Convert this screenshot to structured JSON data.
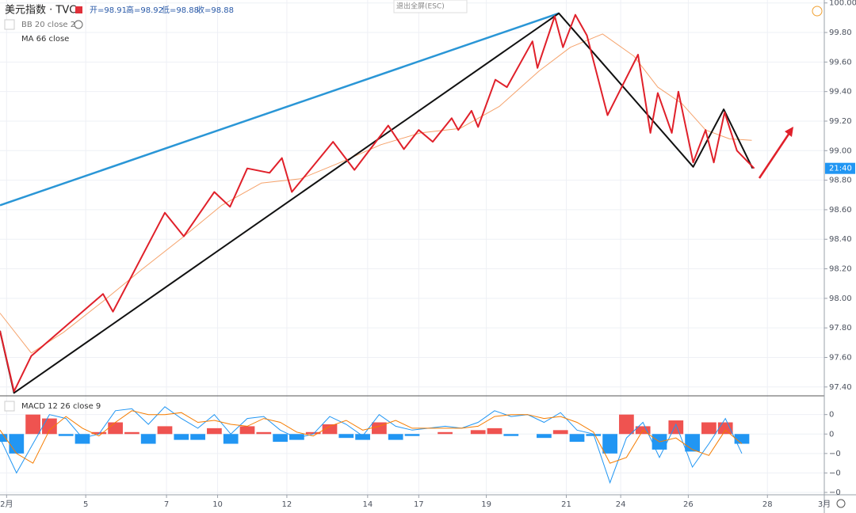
{
  "header": {
    "symbol": "美元指数 · TVC",
    "ohlc": [
      "开=98.91",
      "高=98.92",
      "低=98.88",
      "收=98.88"
    ],
    "indicators": [
      "BB 20 close 2",
      "MA 66 close"
    ],
    "exit_button": "退出全屏(ESC)"
  },
  "chart_data": [
    {
      "type": "line",
      "xlim": [
        0,
        100
      ],
      "xticks": [
        {
          "value": 0.8,
          "label": "2月"
        },
        {
          "value": 10.4,
          "label": "5"
        },
        {
          "value": 20.2,
          "label": "7"
        },
        {
          "value": 26.4,
          "label": "10"
        },
        {
          "value": 34.8,
          "label": "12"
        },
        {
          "value": 44.6,
          "label": "14"
        },
        {
          "value": 50.8,
          "label": "17"
        },
        {
          "value": 59.0,
          "label": "19"
        },
        {
          "value": 68.7,
          "label": "21"
        },
        {
          "value": 75.3,
          "label": "24"
        },
        {
          "value": 83.5,
          "label": "26"
        },
        {
          "value": 93.1,
          "label": "28"
        },
        {
          "value": 100,
          "label": "3月"
        }
      ],
      "ylim": [
        97.34,
        100.02
      ],
      "yticks": [
        {
          "value": 97.4,
          "label": "97.40"
        },
        {
          "value": 97.6,
          "label": "97.60"
        },
        {
          "value": 97.8,
          "label": "97.80"
        },
        {
          "value": 98.0,
          "label": "98.00"
        },
        {
          "value": 98.2,
          "label": "98.20"
        },
        {
          "value": 98.4,
          "label": "98.40"
        },
        {
          "value": 98.6,
          "label": "98.60"
        },
        {
          "value": 98.8,
          "label": "98.80"
        },
        {
          "value": 99.0,
          "label": "99.00"
        },
        {
          "value": 99.2,
          "label": "99.20"
        },
        {
          "value": 99.4,
          "label": "99.40"
        },
        {
          "value": 99.6,
          "label": "99.60"
        },
        {
          "value": 99.8,
          "label": "99.80"
        },
        {
          "value": 100.0,
          "label": "100.00"
        }
      ],
      "grid": true,
      "price_tag": {
        "value": 98.88,
        "label": "21:40",
        "color": "#2196f3"
      },
      "series": [
        {
          "name": "MA 66 close",
          "color": "#f5a26b",
          "width": 1,
          "x": [
            0,
            3.8,
            7.7,
            12.5,
            17.3,
            22.1,
            26.9,
            31.7,
            36.5,
            41.3,
            46.2,
            51.0,
            55.8,
            60.6,
            65.4,
            69.2,
            73.1,
            76.9,
            79.8,
            82.7,
            85.6,
            88.5,
            91.2
          ],
          "values": [
            97.9,
            97.63,
            97.77,
            97.98,
            98.2,
            98.41,
            98.63,
            98.78,
            98.81,
            98.92,
            99.04,
            99.12,
            99.15,
            99.3,
            99.54,
            99.7,
            99.79,
            99.64,
            99.43,
            99.32,
            99.14,
            99.08,
            99.07
          ]
        },
        {
          "name": "trend",
          "color": "#2a96d6",
          "width": 2.5,
          "x": [
            0,
            67.8
          ],
          "values": [
            98.63,
            99.93
          ]
        },
        {
          "name": "wave",
          "color": "#111111",
          "width": 2,
          "x": [
            0,
            1.7,
            67.8,
            84.1,
            87.8,
            91.3
          ],
          "values": [
            97.78,
            97.36,
            99.93,
            98.89,
            99.28,
            98.88
          ]
        },
        {
          "name": "swing",
          "color": "#e0202a",
          "width": 2,
          "x": [
            0,
            1.7,
            3.8,
            12.5,
            13.7,
            20.0,
            22.3,
            26.0,
            27.9,
            30.0,
            32.7,
            34.2,
            35.4,
            40.4,
            43.0,
            47.1,
            49.0,
            50.8,
            52.5,
            54.8,
            55.6,
            57.2,
            58.0,
            60.1,
            61.5,
            64.6,
            65.2,
            67.3,
            68.3,
            69.8,
            71.2,
            73.7,
            77.4,
            78.9,
            79.8,
            81.5,
            82.3,
            84.1,
            85.6,
            86.6,
            87.9,
            89.4,
            91.5
          ],
          "values": [
            97.78,
            97.37,
            97.61,
            98.03,
            97.91,
            98.58,
            98.42,
            98.72,
            98.62,
            98.88,
            98.85,
            98.95,
            98.72,
            99.06,
            98.87,
            99.17,
            99.01,
            99.14,
            99.06,
            99.22,
            99.14,
            99.27,
            99.16,
            99.48,
            99.43,
            99.74,
            99.56,
            99.91,
            99.7,
            99.92,
            99.78,
            99.24,
            99.65,
            99.12,
            99.39,
            99.12,
            99.4,
            98.92,
            99.14,
            98.92,
            99.26,
            99.0,
            98.88
          ]
        }
      ]
    },
    {
      "type": "macd",
      "title": "MACD 12 26 close 9",
      "xlim": [
        0,
        100
      ],
      "ylim": [
        -0.3,
        0.18
      ],
      "yticks": [
        {
          "value": 0.1,
          "label": "0"
        },
        {
          "value": 0,
          "label": "0"
        },
        {
          "value": -0.1,
          "label": "−0"
        },
        {
          "value": -0.2,
          "label": "−0"
        },
        {
          "value": -0.3,
          "label": "−0"
        }
      ],
      "x": [
        0,
        2,
        4,
        6,
        8,
        10,
        12,
        14,
        16,
        18,
        20,
        22,
        24,
        26,
        28,
        30,
        32,
        34,
        36,
        38,
        40,
        42,
        44,
        46,
        48,
        50,
        52,
        54,
        56,
        58,
        60,
        62,
        64,
        66,
        68,
        70,
        72,
        74,
        76,
        78,
        80,
        82,
        84,
        86,
        88,
        90
      ],
      "histogram": [
        -0.04,
        -0.1,
        0.1,
        0.08,
        -0.01,
        -0.05,
        0.01,
        0.06,
        0.01,
        -0.05,
        0.04,
        -0.03,
        -0.03,
        0.03,
        -0.05,
        0.04,
        0.01,
        -0.04,
        -0.03,
        0.01,
        0.05,
        -0.02,
        -0.03,
        0.06,
        -0.03,
        -0.01,
        0,
        0.01,
        0,
        0.02,
        0.03,
        -0.01,
        0,
        -0.02,
        0.02,
        -0.04,
        -0.01,
        -0.1,
        0.1,
        0.04,
        -0.08,
        0.07,
        -0.09,
        0.06,
        0.06,
        -0.05
      ],
      "histogram_colors": {
        "positive": "#ef5350",
        "negative": "#2196f3"
      },
      "series": [
        {
          "name": "MACD",
          "color": "#2196f3",
          "values": [
            -0.02,
            -0.2,
            -0.05,
            0.1,
            0.08,
            -0.02,
            0.0,
            0.12,
            0.13,
            0.05,
            0.14,
            0.08,
            0.03,
            0.1,
            0.0,
            0.08,
            0.09,
            0.02,
            -0.02,
            0.0,
            0.09,
            0.05,
            -0.01,
            0.1,
            0.04,
            0.02,
            0.03,
            0.04,
            0.03,
            0.06,
            0.12,
            0.09,
            0.1,
            0.06,
            0.11,
            0.02,
            0.0,
            -0.25,
            -0.02,
            0.06,
            -0.12,
            0.05,
            -0.17,
            -0.05,
            0.08,
            -0.1
          ]
        },
        {
          "name": "Signal",
          "color": "#f57c00",
          "values": [
            0.02,
            -0.1,
            -0.15,
            0.02,
            0.09,
            0.03,
            -0.01,
            0.06,
            0.12,
            0.1,
            0.1,
            0.11,
            0.06,
            0.07,
            0.05,
            0.04,
            0.08,
            0.06,
            0.01,
            -0.01,
            0.04,
            0.07,
            0.02,
            0.04,
            0.07,
            0.03,
            0.03,
            0.03,
            0.03,
            0.04,
            0.09,
            0.1,
            0.1,
            0.08,
            0.09,
            0.06,
            0.01,
            -0.15,
            -0.12,
            0.02,
            -0.04,
            -0.02,
            -0.08,
            -0.11,
            0.02,
            -0.05
          ]
        }
      ]
    }
  ]
}
